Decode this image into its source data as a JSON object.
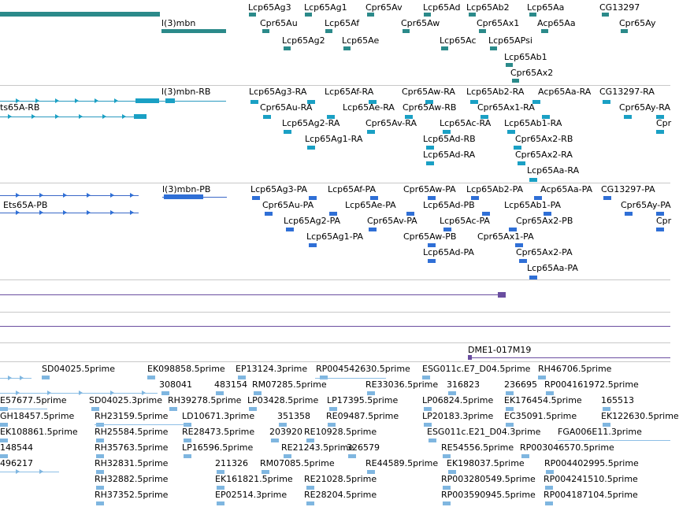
{
  "colors": {
    "gene": "#2b8a8a",
    "rna": "#1aa0c4",
    "rna_line": "#2a9ac0",
    "protein": "#2f6fd6",
    "protein_line": "#3a68c8",
    "bac": "#6a4ea0",
    "est": "#7fb6e0",
    "est_line": "#8dbfe6",
    "separator": "#c8c8c8",
    "text": "#000000"
  },
  "genes": [
    "Lcp65Ag3",
    "Lcp65Ag1",
    "Cpr65Av",
    "Lcp65Ad",
    "Lcp65Ab2",
    "Lcp65Aa",
    "CG13297",
    "l(3)mbn",
    "Cpr65Au",
    "Lcp65Af",
    "Cpr65Aw",
    "Cpr65Ax1",
    "Acp65Aa",
    "Cpr65Ay",
    "Lcp65Ag2",
    "Lcp65Ae",
    "Lcp65Ac",
    "Lcp65APsi",
    "Lcp65Ab1",
    "Cpr65Ax2"
  ],
  "transcripts": [
    "l(3)mbn-RB",
    "ts65A-RB",
    "Lcp65Ag3-RA",
    "Lcp65Af-RA",
    "Cpr65Aw-RA",
    "Lcp65Ab2-RA",
    "Acp65Aa-RA",
    "CG13297-RA",
    "Cpr65Au-RA",
    "Lcp65Ae-RA",
    "Cpr65Aw-RB",
    "Cpr65Ax1-RA",
    "Cpr65Ay-RA",
    "Lcp65Ag2-RA",
    "Cpr65Av-RA",
    "Lcp65Ac-RA",
    "Lcp65Ab1-RA",
    "Cpr",
    "Lcp65Ag1-RA",
    "Lcp65Ad-RB",
    "Cpr65Ax2-RB",
    "Lcp65Ad-RA",
    "Cpr65Ax2-RA",
    "Lcp65Aa-RA"
  ],
  "proteins": [
    "l(3)mbn-PB",
    "Ets65A-PB",
    "Lcp65Ag3-PA",
    "Lcp65Af-PA",
    "Cpr65Aw-PA",
    "Lcp65Ab2-PA",
    "Acp65Aa-PA",
    "CG13297-PA",
    "Cpr65Au-PA",
    "Lcp65Ae-PA",
    "Lcp65Ad-PB",
    "Lcp65Ab1-PA",
    "Cpr65Ay-PA",
    "Lcp65Ag2-PA",
    "Cpr65Av-PA",
    "Lcp65Ac-PA",
    "Cpr65Ax2-PB",
    "Cpr",
    "Lcp65Ag1-PA",
    "Cpr65Aw-PB",
    "Cpr65Ax1-PA",
    "Lcp65Ad-PA",
    "Cpr65Ax2-PA",
    "Lcp65Aa-PA"
  ],
  "bac_clone": "DME1-017M19",
  "ests": [
    "SD04025.5prime",
    "EK098858.5prime",
    "EP13124.3prime",
    "RP004542630.5prime",
    "ESG011c.E7_D04.5prime",
    "RH46706.5prime",
    "308041",
    "483154",
    "RM07285.5prime",
    "RE33036.5prime",
    "316823",
    "236695",
    "RP004161972.5prime",
    "E57677.5prime",
    "SD04025.3prime",
    "RH39278.5prime",
    "LP03428.5prime",
    "LP17395.5prime",
    "LP06824.5prime",
    "EK176454.5prime",
    "165513",
    "GH18457.5prime",
    "RH23159.5prime",
    "LD10671.3prime",
    "351358",
    "RE09487.5prime",
    "LP20183.3prime",
    "EC35091.5prime",
    "EK122630.5prime",
    "EK108861.5prime",
    "RH25584.5prime",
    "RE28473.5prime",
    "203920",
    "RE10928.5prime",
    "ESG011c.E21_D04.3prime",
    "FGA006E11.3prime",
    "148544",
    "RH35763.5prime",
    "LP16596.5prime",
    "RE21243.5prime",
    "326579",
    "RE54556.5prime",
    "RP003046570.5prime",
    "496217",
    "RH32831.5prime",
    "211326",
    "RM07085.5prime",
    "RE44589.5prime",
    "EK198037.5prime",
    "RP004402995.5prime",
    "RH32882.5prime",
    "EK161821.5prime",
    "RE21028.5prime",
    "RP003280549.5prime",
    "RP004241510.5prime",
    "RH37352.5prime",
    "EP02514.3prime",
    "RE28204.5prime",
    "RP003590945.5prime",
    "RP004187104.5prime"
  ]
}
